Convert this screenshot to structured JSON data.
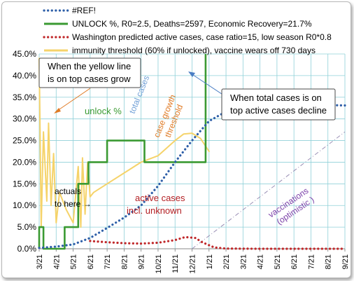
{
  "chart_data": {
    "type": "line",
    "legend": [
      {
        "label": "#REF!",
        "color": "#2e5fa8",
        "style": "dotted"
      },
      {
        "label": "UNLOCK %, R0=2.5,  Deaths=2597, Economic Recovery=21.7%",
        "color": "#3a9a32",
        "style": "solid"
      },
      {
        "label": "Washington predicted active cases, case ratio=15, low season R0*0.8",
        "color": "#c0282a",
        "style": "dotted"
      },
      {
        "label": "immunity threshold (60% if unlocked), vaccine wears off 730 days",
        "color": "#f5d36a",
        "style": "solid"
      }
    ],
    "x_ticks": [
      "3/21",
      "4/21",
      "5/21",
      "6/21",
      "7/21",
      "8/21",
      "9/21",
      "10/21",
      "11/21",
      "12/21",
      "1/21",
      "2/21",
      "3/21",
      "4/21",
      "5/21",
      "6/21",
      "7/21",
      "8/21",
      "9/21"
    ],
    "y_ticks": [
      "0.0%",
      "5.0%",
      "10.0%",
      "15.0%",
      "20.0%",
      "25.0%",
      "30.0%",
      "35.0%",
      "40.0%",
      "45.0%"
    ],
    "ylim": [
      0,
      45
    ],
    "grid": true,
    "series": [
      {
        "name": "#REF!",
        "points": [
          [
            0,
            0.2
          ],
          [
            1,
            0.5
          ],
          [
            2,
            1.0
          ],
          [
            3,
            2.5
          ],
          [
            4,
            4.8
          ],
          [
            5,
            7.2
          ],
          [
            6,
            10
          ],
          [
            7,
            14.5
          ],
          [
            8,
            20
          ],
          [
            9,
            25
          ],
          [
            10,
            29.5
          ],
          [
            11,
            31.7
          ],
          [
            12,
            33
          ],
          [
            13,
            33.3
          ],
          [
            14,
            33.5
          ],
          [
            15,
            33.3
          ],
          [
            16,
            33.2
          ],
          [
            17,
            33.2
          ],
          [
            18,
            33.1
          ]
        ]
      },
      {
        "name": "UNLOCK %, R0=2.5,  Deaths=2597, Economic Recovery=21.7%",
        "points": [
          [
            0,
            0
          ],
          [
            0,
            5
          ],
          [
            0.25,
            5
          ],
          [
            0.25,
            0
          ],
          [
            1.5,
            0
          ],
          [
            1.5,
            5
          ],
          [
            2.3,
            5
          ],
          [
            2.3,
            15
          ],
          [
            2.9,
            15
          ],
          [
            2.9,
            20
          ],
          [
            4.0,
            20
          ],
          [
            4.0,
            25
          ],
          [
            6.2,
            25
          ],
          [
            6.2,
            20
          ],
          [
            9.8,
            20
          ],
          [
            9.8,
            45
          ]
        ]
      },
      {
        "name": "Washington predicted active cases, case ratio=15, low season R0*0.8",
        "points": [
          [
            3,
            1.8
          ],
          [
            4,
            1.5
          ],
          [
            5,
            1.3
          ],
          [
            6,
            1.2
          ],
          [
            7,
            1.4
          ],
          [
            8,
            2.0
          ],
          [
            8.6,
            2.7
          ],
          [
            9.2,
            2.5
          ],
          [
            9.6,
            1.5
          ],
          [
            10.3,
            0.3
          ],
          [
            11,
            0.05
          ],
          [
            13,
            0
          ],
          [
            18,
            0
          ]
        ]
      },
      {
        "name": "immunity threshold (60% if unlocked), vaccine wears off 730 days",
        "points": [
          [
            0,
            44
          ],
          [
            0.12,
            5
          ],
          [
            0.25,
            27
          ],
          [
            0.45,
            11
          ],
          [
            0.55,
            29
          ],
          [
            0.7,
            10
          ],
          [
            0.85,
            22
          ],
          [
            1.0,
            6
          ],
          [
            1.2,
            13
          ],
          [
            1.6,
            9
          ],
          [
            2.0,
            6
          ],
          [
            2.3,
            19
          ],
          [
            2.45,
            5
          ],
          [
            2.55,
            21
          ],
          [
            2.7,
            8
          ],
          [
            2.85,
            20
          ],
          [
            3.0,
            12
          ],
          [
            3.2,
            13
          ],
          [
            4.0,
            15
          ],
          [
            5.0,
            17.5
          ],
          [
            6.0,
            20
          ],
          [
            7.0,
            21.5
          ],
          [
            8.0,
            25
          ],
          [
            8.5,
            26.5
          ],
          [
            9.0,
            26.7
          ],
          [
            9.5,
            25.5
          ],
          [
            10.0,
            22.5
          ]
        ]
      },
      {
        "name": "vaccinations",
        "points": [
          [
            9,
            0
          ],
          [
            18,
            27
          ]
        ]
      }
    ],
    "annotations": [
      {
        "text": "When the yellow line is on top cases grow"
      },
      {
        "text": "When total cases is on top active cases decline"
      },
      {
        "text": "unlock %"
      },
      {
        "text": "total cases"
      },
      {
        "text": "case growth threshold"
      },
      {
        "text": "actuals to here"
      },
      {
        "text": "active cases incl. unknown"
      },
      {
        "text": "vaccinations (optimistic )"
      }
    ]
  },
  "callouts": {
    "left_line1": "When the yellow line",
    "left_line2": "is on top cases grow",
    "right_line1": "When total cases is on",
    "right_line2": "top active cases decline"
  },
  "labels": {
    "unlock": "unlock %",
    "total_cases": "total cases",
    "case_growth_1": "case growth",
    "case_growth_2": "threshold",
    "actuals_1": "actuals",
    "actuals_2": "to here →",
    "active_1": "active cases",
    "active_2": "incl. unknown",
    "vacc_1": "vaccinations",
    "vacc_2": "(optimistic )"
  }
}
